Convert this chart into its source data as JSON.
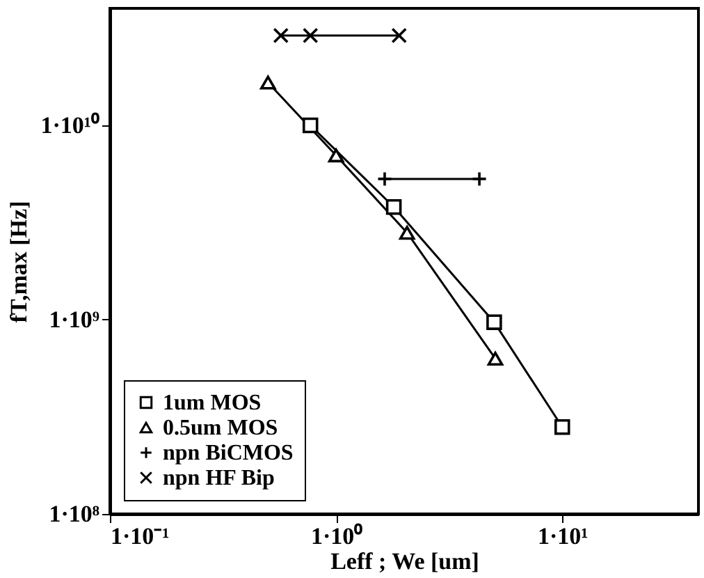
{
  "chart_data": {
    "type": "line",
    "xlabel": "Leff ;  We [um]",
    "ylabel": "fT,max [Hz]",
    "log": "xy",
    "xlim": [
      0.1,
      40
    ],
    "ylim": [
      100000000.0,
      40000000000.0
    ],
    "xticks": [
      {
        "value": 0.1,
        "label": "1·10⁻¹"
      },
      {
        "value": 1,
        "label": "1·10⁰"
      },
      {
        "value": 10,
        "label": "1·10¹"
      }
    ],
    "yticks": [
      {
        "value": 100000000.0,
        "label": "1·10⁸"
      },
      {
        "value": 1000000000.0,
        "label": "1·10⁹"
      },
      {
        "value": 10000000000.0,
        "label": "1·10¹⁰"
      }
    ],
    "grid": false,
    "legend": "bottom left",
    "line_style": "solid",
    "series": [
      {
        "name": "1um MOS",
        "color": "#000000",
        "marker": "square",
        "x": [
          0.77,
          1.8,
          5,
          10
        ],
        "values": [
          10000000000.0,
          3800000000.0,
          970000000.0,
          280000000.0
        ]
      },
      {
        "name": "0.5um MOS",
        "color": "#000000",
        "marker": "triangle",
        "x": [
          0.5,
          1,
          2.06,
          5.06
        ],
        "values": [
          16600000000.0,
          7000000000.0,
          2800000000.0,
          630000000.0
        ]
      },
      {
        "name": "npn BiCMOS",
        "color": "#000000",
        "marker": "cross",
        "x": [
          1.64,
          4.3
        ],
        "values": [
          5300000000.0,
          5300000000.0
        ]
      },
      {
        "name": "npn HF Bip",
        "color": "#000000",
        "marker": "x",
        "x": [
          0.57,
          0.77,
          1.9
        ],
        "values": [
          29000000000.0,
          29000000000.0,
          29000000000.0
        ]
      }
    ]
  }
}
